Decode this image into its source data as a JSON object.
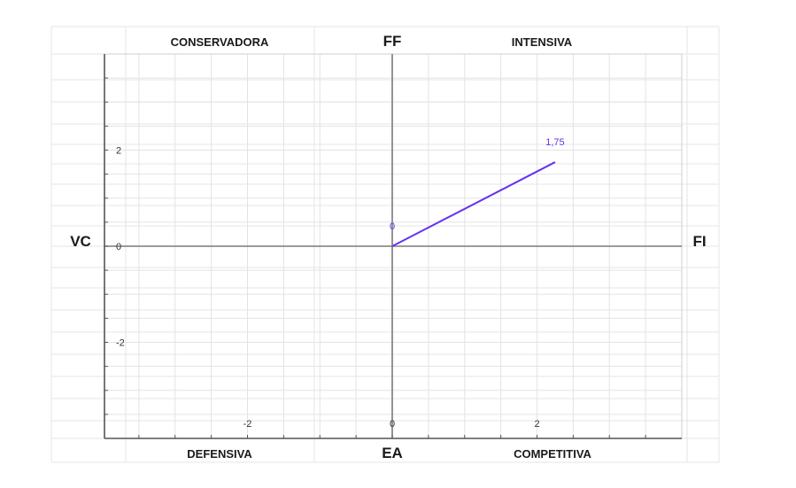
{
  "chart_data": {
    "type": "line",
    "quadrant_labels": {
      "top_left": "CONSERVADORA",
      "top_right": "INTENSIVA",
      "bottom_left": "DEFENSIVA",
      "bottom_right": "COMPETITIVA"
    },
    "axis_names": {
      "top": "FF",
      "bottom": "EA",
      "left": "VC",
      "right": "FI"
    },
    "xlim": [
      -4,
      4
    ],
    "ylim": [
      -4,
      4
    ],
    "x_ticks": [
      {
        "value": -2,
        "label": "-2"
      },
      {
        "value": 0,
        "label": "0"
      },
      {
        "value": 2,
        "label": "2"
      }
    ],
    "y_ticks": [
      {
        "value": 2,
        "label": "2"
      },
      {
        "value": 0,
        "label": "0"
      },
      {
        "value": -2,
        "label": "-2"
      }
    ],
    "grid": true,
    "series": [
      {
        "color": "#6633ee",
        "points": [
          {
            "x": 0,
            "y": 0,
            "label": "0"
          },
          {
            "x": 2.25,
            "y": 1.75,
            "label": "1,75"
          }
        ]
      }
    ]
  }
}
